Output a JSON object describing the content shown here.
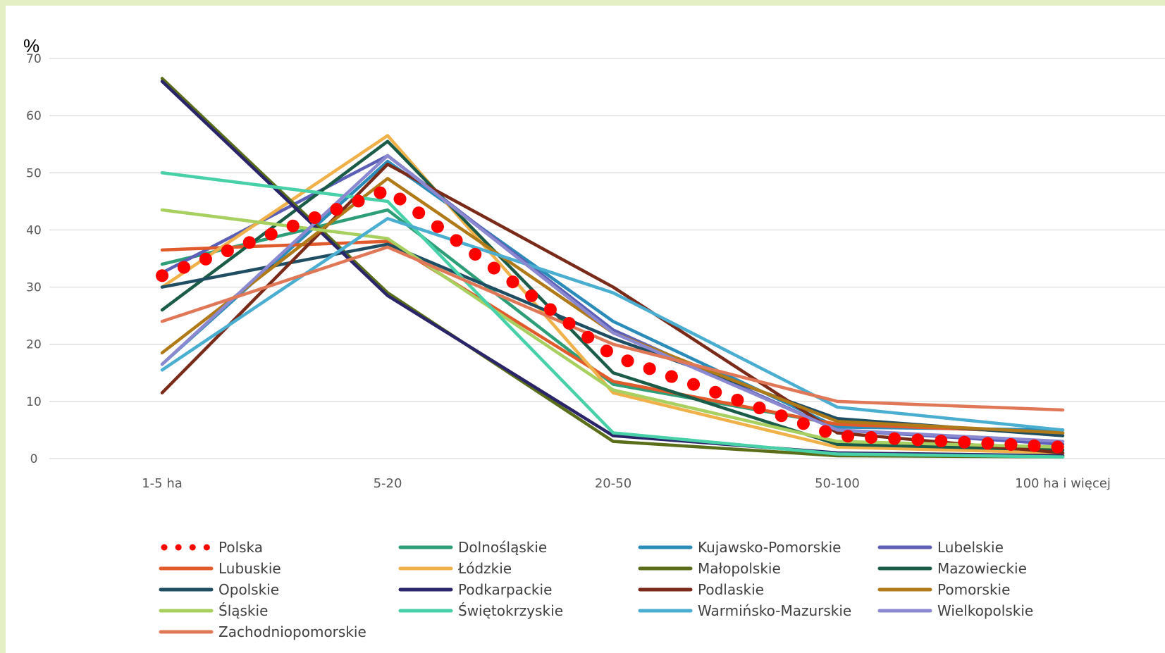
{
  "chart_data": {
    "type": "line",
    "ylabel": "%",
    "ylim": [
      0,
      70
    ],
    "yticks": [
      0,
      10,
      20,
      30,
      40,
      50,
      60,
      70
    ],
    "grid": true,
    "legend_position": "bottom",
    "categories": [
      "1-5 ha",
      "5-20",
      "20-50",
      "50-100",
      "100 ha i więcej"
    ],
    "series": [
      {
        "name": "Polska",
        "style": "dotted",
        "color": "#ff0000",
        "values": [
          32,
          47,
          18,
          4,
          2
        ]
      },
      {
        "name": "Dolnośląskie",
        "color": "#2e9e78",
        "values": [
          34,
          43.5,
          13,
          6,
          4.5
        ]
      },
      {
        "name": "Kujawsko-Pomorskie",
        "color": "#2b8cba",
        "values": [
          16.5,
          52,
          24,
          5.5,
          5
        ]
      },
      {
        "name": "Lubelskie",
        "color": "#5b5fb5",
        "values": [
          32.5,
          53,
          22.5,
          5,
          2.5
        ]
      },
      {
        "name": "Lubuskie",
        "color": "#e05a2b",
        "values": [
          36.5,
          38,
          13.5,
          6,
          4.5
        ]
      },
      {
        "name": "Łódzkie",
        "color": "#f0b14a",
        "values": [
          30,
          56.5,
          11.5,
          2,
          1
        ]
      },
      {
        "name": "Małopolskie",
        "color": "#5a6e1a",
        "values": [
          66.5,
          29,
          3,
          0.5,
          0.3
        ]
      },
      {
        "name": "Mazowieckie",
        "color": "#1a5c48",
        "values": [
          26,
          55.5,
          15,
          2.5,
          1.5
        ]
      },
      {
        "name": "Opolskie",
        "color": "#1f4e63",
        "values": [
          30,
          37.5,
          21,
          7,
          4
        ]
      },
      {
        "name": "Podkarpackie",
        "color": "#2a2468",
        "values": [
          66,
          28.5,
          4,
          1,
          0.5
        ]
      },
      {
        "name": "Podlaskie",
        "color": "#7a2a18",
        "values": [
          11.5,
          51.5,
          30,
          4.5,
          1
        ]
      },
      {
        "name": "Pomorskie",
        "color": "#b07a18",
        "values": [
          18.5,
          49,
          22,
          6.5,
          4.5
        ]
      },
      {
        "name": "Śląskie",
        "color": "#a8d060",
        "values": [
          43.5,
          38.5,
          12,
          3,
          2
        ]
      },
      {
        "name": "Świętokrzyskie",
        "color": "#48d0a8",
        "values": [
          50,
          45,
          4.5,
          0.8,
          0.3
        ]
      },
      {
        "name": "Warmińsko-Mazurskie",
        "color": "#4aaed0",
        "values": [
          15.5,
          42,
          29,
          9,
          5
        ]
      },
      {
        "name": "Wielkopolskie",
        "color": "#8a88d0",
        "values": [
          16.5,
          53,
          22,
          5,
          3
        ]
      },
      {
        "name": "Zachodniopomorskie",
        "color": "#e07858",
        "values": [
          24,
          37,
          20,
          10,
          8.5
        ]
      }
    ]
  }
}
